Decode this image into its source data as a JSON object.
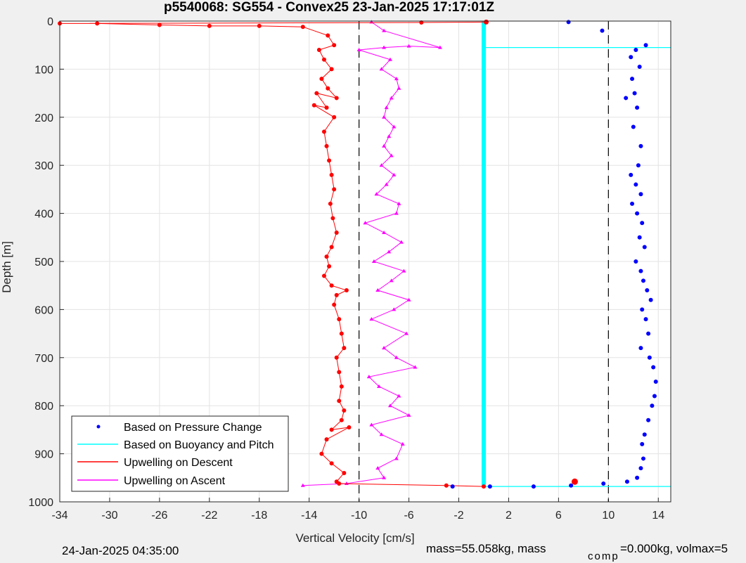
{
  "chart_data": {
    "type": "scatter",
    "title": "p5540068: SG554 - Convex25 23-Jan-2025 17:17:01Z",
    "xlabel": "Vertical Velocity [cm/s]",
    "ylabel": "Depth [m]",
    "xlim": [
      -34,
      15
    ],
    "ylim": [
      0,
      1000
    ],
    "y_reversed": true,
    "grid": true,
    "x_ticks": [
      -34,
      -30,
      -26,
      -22,
      -18,
      -14,
      -10,
      -6,
      -2,
      2,
      6,
      10,
      14
    ],
    "y_ticks": [
      0,
      100,
      200,
      300,
      400,
      500,
      600,
      700,
      800,
      900,
      1000
    ],
    "reference_lines": [
      -10,
      10
    ],
    "legend_position": "bottom-left",
    "series": [
      {
        "name": "Based on Pressure Change",
        "color": "#0000ff",
        "marker": "dot",
        "x": [
          6.8,
          9.5,
          12.2,
          13.0,
          11.8,
          12.5,
          11.9,
          12.1,
          12.3,
          11.4,
          12.0,
          12.6,
          12.4,
          11.8,
          12.2,
          12.6,
          11.9,
          12.3,
          12.7,
          12.5,
          12.9,
          12.2,
          12.6,
          12.8,
          13.1,
          13.4,
          12.7,
          13.0,
          13.2,
          12.6,
          13.3,
          13.6,
          13.8,
          13.7,
          13.5,
          13.2,
          12.9,
          12.7,
          12.8,
          12.6,
          12.3,
          11.5,
          9.6,
          7.0,
          4.0,
          0.5,
          -2.5
        ],
        "y": [
          2,
          20,
          60,
          50,
          75,
          95,
          120,
          150,
          180,
          160,
          220,
          260,
          300,
          320,
          340,
          360,
          380,
          400,
          420,
          450,
          470,
          500,
          520,
          540,
          560,
          580,
          600,
          620,
          650,
          680,
          700,
          720,
          750,
          780,
          800,
          830,
          860,
          880,
          910,
          930,
          950,
          958,
          962,
          966,
          968,
          968,
          968
        ]
      },
      {
        "name": "Based on Buoyancy and Pitch",
        "color": "#00ffff",
        "marker": "line",
        "x": [
          0,
          0,
          0,
          15,
          0,
          0,
          15
        ],
        "y": [
          0,
          55,
          55,
          55,
          55,
          968,
          968
        ]
      },
      {
        "name": "Upwelling on Descent",
        "color": "#ff0000",
        "marker": "dot-line",
        "x": [
          0.2,
          -5.0,
          -34,
          -31,
          -26,
          -22,
          -18,
          -14.5,
          -12.5,
          -12.0,
          -13.2,
          -12.8,
          -12.2,
          -13.0,
          -12.5,
          -11.8,
          -13.4,
          -12.6,
          -13.6,
          -12.0,
          -12.8,
          -12.6,
          -12.4,
          -12.2,
          -12.0,
          -12.3,
          -12.1,
          -11.8,
          -12.2,
          -12.6,
          -12.4,
          -12.8,
          -12.2,
          -11.0,
          -11.8,
          -12.0,
          -11.6,
          -11.4,
          -11.2,
          -11.8,
          -11.6,
          -11.4,
          -11.6,
          -11.2,
          -11.4,
          -12.2,
          -10.8,
          -12.6,
          -13.0,
          -12.2,
          -11.2,
          -11.8,
          -11.6,
          -3.0,
          0.0
        ],
        "y": [
          2,
          3,
          5,
          5,
          8,
          10,
          10,
          12,
          30,
          50,
          60,
          80,
          100,
          120,
          140,
          160,
          150,
          180,
          175,
          200,
          230,
          260,
          290,
          320,
          350,
          380,
          410,
          440,
          470,
          490,
          510,
          530,
          550,
          560,
          570,
          590,
          620,
          650,
          680,
          700,
          730,
          760,
          790,
          810,
          830,
          850,
          845,
          870,
          900,
          920,
          940,
          958,
          962,
          966,
          968
        ]
      },
      {
        "name": "Upwelling on Ascent",
        "color": "#ff00ff",
        "marker": "triangle-line",
        "x": [
          -14.5,
          -11.0,
          -8.0,
          -8.5,
          -7.0,
          -6.5,
          -8.2,
          -9.0,
          -6.0,
          -7.5,
          -6.8,
          -8.4,
          -9.2,
          -5.5,
          -7.0,
          -8.0,
          -6.2,
          -9.0,
          -7.2,
          -6.0,
          -8.5,
          -7.4,
          -6.4,
          -8.8,
          -7.6,
          -6.6,
          -8.0,
          -9.5,
          -7.0,
          -6.8,
          -8.6,
          -7.8,
          -7.2,
          -8.2,
          -7.4,
          -8.0,
          -7.6,
          -7.2,
          -8.0,
          -7.8,
          -7.4,
          -6.8,
          -7.0,
          -8.2,
          -7.5,
          -10.0,
          -8.0,
          -6.0,
          -3.5,
          -8.0,
          -9.0
        ],
        "y": [
          966,
          962,
          950,
          930,
          910,
          880,
          860,
          840,
          820,
          800,
          780,
          760,
          740,
          720,
          700,
          680,
          650,
          620,
          600,
          580,
          560,
          540,
          520,
          500,
          480,
          460,
          440,
          420,
          400,
          380,
          360,
          340,
          320,
          300,
          280,
          260,
          240,
          220,
          200,
          180,
          160,
          140,
          120,
          100,
          80,
          60,
          55,
          52,
          55,
          20,
          2
        ]
      }
    ]
  },
  "footer": {
    "date": "24-Jan-2025 04:35:00",
    "mass": "mass=55.058kg, mass",
    "comp_sub": "comp",
    "comp_rest": "=0.000kg, volmax=5"
  }
}
